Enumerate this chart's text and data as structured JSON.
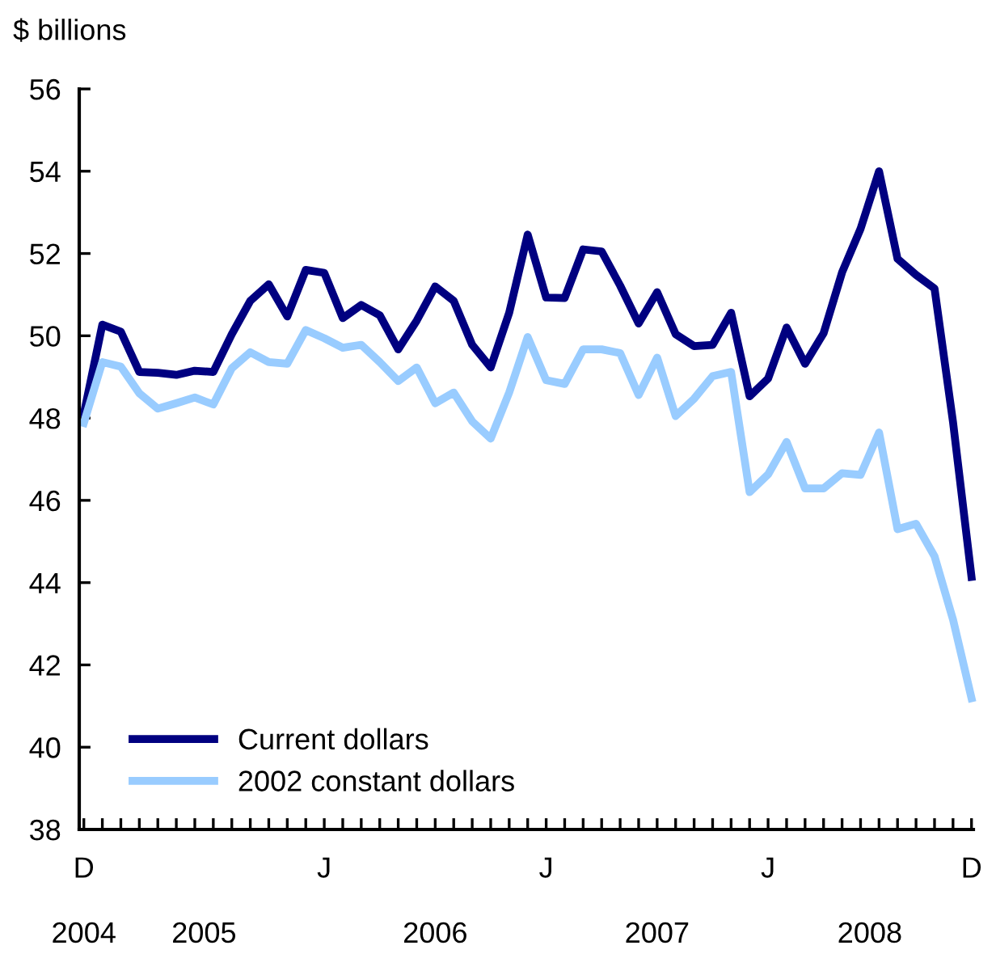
{
  "chart_data": {
    "type": "line",
    "ylabel": "$ billions",
    "categories": [
      "D",
      null,
      null,
      null,
      null,
      null,
      null,
      null,
      null,
      null,
      null,
      null,
      null,
      "J",
      null,
      null,
      null,
      null,
      null,
      null,
      null,
      null,
      null,
      null,
      null,
      "J",
      null,
      null,
      null,
      null,
      null,
      null,
      null,
      null,
      null,
      null,
      null,
      "J",
      null,
      null,
      null,
      null,
      null,
      null,
      null,
      null,
      null,
      null,
      "D"
    ],
    "annotations": [
      "2004",
      "2005",
      "2006",
      "2007",
      "2008"
    ],
    "series": [
      {
        "name": "Current dollars",
        "color": "#000080",
        "values": [
          48.1,
          50.27,
          50.1,
          49.12,
          49.1,
          49.05,
          49.15,
          49.12,
          50.04,
          50.85,
          51.25,
          50.47,
          51.6,
          51.53,
          50.43,
          50.75,
          50.5,
          49.67,
          50.37,
          51.2,
          50.85,
          49.78,
          49.23,
          50.56,
          52.46,
          50.93,
          50.92,
          52.1,
          52.05,
          51.22,
          50.3,
          51.06,
          50.04,
          49.75,
          49.78,
          50.56,
          48.53,
          48.96,
          50.2,
          49.32,
          50.06,
          51.54,
          52.6,
          54.0,
          51.87,
          51.48,
          51.15,
          47.9,
          44.14
        ]
      },
      {
        "name": "2002 constant dollars",
        "color": "#99ccff",
        "values": [
          47.88,
          49.36,
          49.25,
          48.6,
          48.23,
          48.36,
          48.5,
          48.33,
          49.21,
          49.6,
          49.36,
          49.32,
          50.14,
          49.94,
          49.71,
          49.78,
          49.36,
          48.9,
          49.23,
          48.36,
          48.62,
          47.92,
          47.5,
          48.62,
          49.97,
          48.92,
          48.83,
          49.67,
          49.67,
          49.58,
          48.56,
          49.47,
          48.05,
          48.47,
          49.02,
          49.12,
          46.2,
          46.63,
          47.42,
          46.29,
          46.29,
          46.66,
          46.62,
          47.65,
          45.3,
          45.43,
          44.64,
          43.1,
          41.19
        ]
      }
    ],
    "ylim": [
      38,
      56
    ],
    "yticks": [
      38,
      40,
      42,
      44,
      46,
      48,
      50,
      52,
      54,
      56
    ],
    "grid": false,
    "legend": "bottom left",
    "marker": "none",
    "line_style": "solid"
  }
}
